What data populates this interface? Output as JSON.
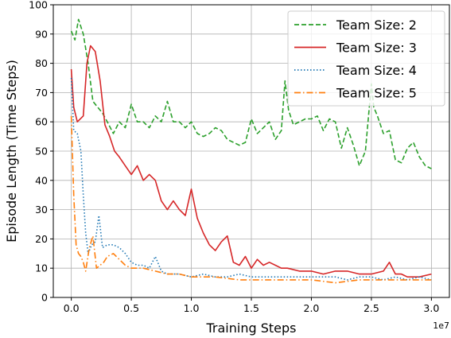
{
  "chart_data": {
    "type": "line",
    "xlabel": "Training Steps",
    "ylabel": "Episode Length (Time Steps)",
    "x_offset_label": "1e7",
    "xlim": [
      -0.15,
      3.15
    ],
    "ylim": [
      0,
      100
    ],
    "xticks": [
      0.0,
      0.5,
      1.0,
      1.5,
      2.0,
      2.5,
      3.0
    ],
    "xtick_labels": [
      "0.0",
      "0.5",
      "1.0",
      "1.5",
      "2.0",
      "2.5",
      "3.0"
    ],
    "yticks": [
      0,
      10,
      20,
      30,
      40,
      50,
      60,
      70,
      80,
      90,
      100
    ],
    "ytick_labels": [
      "0",
      "10",
      "20",
      "30",
      "40",
      "50",
      "60",
      "70",
      "80",
      "90",
      "100"
    ],
    "grid": true,
    "legend_position": "top-right",
    "series": [
      {
        "name": "Team Size: 2",
        "color": "#2ca02c",
        "dash": "dashed",
        "x": [
          0.0,
          0.03,
          0.06,
          0.1,
          0.14,
          0.18,
          0.22,
          0.26,
          0.3,
          0.35,
          0.4,
          0.45,
          0.5,
          0.55,
          0.6,
          0.65,
          0.7,
          0.75,
          0.8,
          0.85,
          0.9,
          0.95,
          1.0,
          1.05,
          1.1,
          1.15,
          1.2,
          1.25,
          1.3,
          1.35,
          1.4,
          1.45,
          1.5,
          1.55,
          1.6,
          1.65,
          1.7,
          1.75,
          1.78,
          1.81,
          1.85,
          1.9,
          1.95,
          2.0,
          2.05,
          2.1,
          2.15,
          2.2,
          2.25,
          2.3,
          2.35,
          2.4,
          2.45,
          2.5,
          2.52,
          2.55,
          2.6,
          2.65,
          2.7,
          2.75,
          2.8,
          2.85,
          2.9,
          2.95,
          3.0
        ],
        "y": [
          91,
          88,
          95,
          90,
          80,
          67,
          65,
          63,
          60,
          56,
          60,
          58,
          66,
          60,
          60,
          58,
          62,
          60,
          67,
          60,
          60,
          58,
          60,
          56,
          55,
          56,
          58,
          57,
          54,
          53,
          52,
          53,
          61,
          56,
          58,
          60,
          54,
          57,
          74,
          64,
          59,
          60,
          61,
          61,
          62,
          57,
          61,
          60,
          51,
          58,
          52,
          45,
          50,
          73,
          65,
          62,
          56,
          57,
          47,
          46,
          51,
          53,
          48,
          45,
          44
        ]
      },
      {
        "name": "Team Size: 3",
        "color": "#d62728",
        "dash": "solid",
        "x": [
          0.0,
          0.02,
          0.05,
          0.1,
          0.13,
          0.16,
          0.2,
          0.24,
          0.28,
          0.32,
          0.36,
          0.4,
          0.45,
          0.5,
          0.55,
          0.6,
          0.65,
          0.7,
          0.75,
          0.8,
          0.85,
          0.9,
          0.95,
          1.0,
          1.05,
          1.1,
          1.15,
          1.2,
          1.25,
          1.3,
          1.35,
          1.4,
          1.45,
          1.5,
          1.55,
          1.6,
          1.65,
          1.7,
          1.75,
          1.8,
          1.9,
          2.0,
          2.1,
          2.2,
          2.3,
          2.4,
          2.5,
          2.6,
          2.65,
          2.7,
          2.75,
          2.8,
          2.9,
          3.0
        ],
        "y": [
          78,
          65,
          60,
          62,
          80,
          86,
          84,
          74,
          59,
          55,
          50,
          48,
          45,
          42,
          45,
          40,
          42,
          40,
          33,
          30,
          33,
          30,
          28,
          37,
          27,
          22,
          18,
          16,
          19,
          21,
          12,
          11,
          14,
          10,
          13,
          11,
          12,
          11,
          10,
          10,
          9,
          9,
          8,
          9,
          9,
          8,
          8,
          9,
          12,
          8,
          8,
          7,
          7,
          8
        ]
      },
      {
        "name": "Team Size: 4",
        "color": "#1f77b4",
        "dash": "dotted",
        "x": [
          0.0,
          0.02,
          0.05,
          0.08,
          0.1,
          0.12,
          0.14,
          0.17,
          0.2,
          0.23,
          0.26,
          0.3,
          0.35,
          0.4,
          0.45,
          0.5,
          0.55,
          0.6,
          0.65,
          0.7,
          0.75,
          0.8,
          0.9,
          1.0,
          1.1,
          1.2,
          1.3,
          1.4,
          1.5,
          1.6,
          1.7,
          1.8,
          1.9,
          2.0,
          2.1,
          2.2,
          2.3,
          2.4,
          2.5,
          2.6,
          2.7,
          2.8,
          2.9,
          3.0
        ],
        "y": [
          75,
          57,
          56,
          50,
          35,
          22,
          15,
          18,
          19,
          28,
          17,
          18,
          18,
          17,
          15,
          12,
          11,
          11,
          10,
          14,
          9,
          8,
          8,
          7,
          8,
          7,
          7,
          8,
          7,
          7,
          7,
          7,
          7,
          7,
          7,
          7,
          6,
          7,
          7,
          6,
          7,
          6,
          7,
          6
        ]
      },
      {
        "name": "Team Size: 5",
        "color": "#ff7f0e",
        "dash": "dashdot",
        "x": [
          0.0,
          0.02,
          0.04,
          0.06,
          0.08,
          0.1,
          0.12,
          0.15,
          0.18,
          0.21,
          0.24,
          0.27,
          0.3,
          0.35,
          0.4,
          0.45,
          0.5,
          0.6,
          0.7,
          0.8,
          0.9,
          1.0,
          1.2,
          1.4,
          1.6,
          1.8,
          2.0,
          2.2,
          2.4,
          2.6,
          2.8,
          3.0
        ],
        "y": [
          62,
          35,
          18,
          15,
          14,
          12,
          9,
          17,
          21,
          10,
          11,
          12,
          14,
          15,
          13,
          11,
          10,
          10,
          9,
          8,
          8,
          7,
          7,
          6,
          6,
          6,
          6,
          5,
          6,
          6,
          6,
          6
        ]
      }
    ]
  }
}
